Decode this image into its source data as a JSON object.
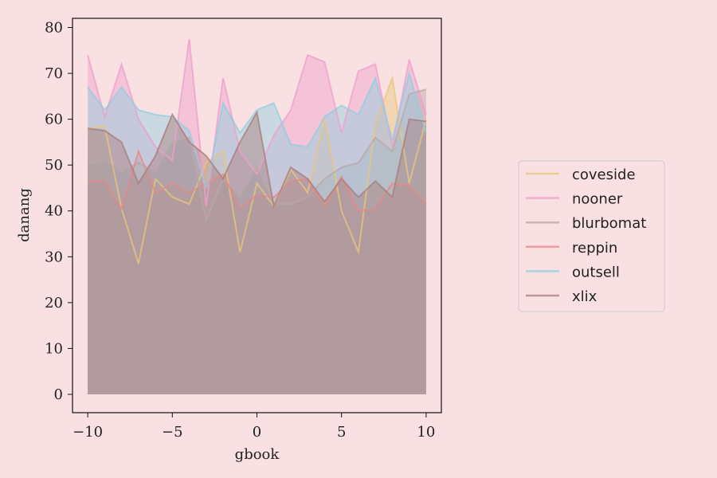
{
  "chart_data": {
    "type": "area",
    "xlabel": "gbook",
    "ylabel": "danang",
    "xlim": [
      -10.9,
      10.9
    ],
    "ylim": [
      -4,
      82
    ],
    "xticks": [
      -10,
      -5,
      0,
      5,
      10
    ],
    "xtick_labels": [
      "−10",
      "−5",
      "0",
      "5",
      "10"
    ],
    "yticks": [
      0,
      10,
      20,
      30,
      40,
      50,
      60,
      70,
      80
    ],
    "ytick_labels": [
      "0",
      "10",
      "20",
      "30",
      "40",
      "50",
      "60",
      "70",
      "80"
    ],
    "x": [
      -10,
      -9,
      -8,
      -7,
      -6,
      -5,
      -4,
      -3,
      -2,
      -1,
      0,
      1,
      2,
      3,
      4,
      5,
      6,
      7,
      8,
      9,
      10
    ],
    "legend_position": "right",
    "grid": false,
    "series": [
      {
        "name": "coveside",
        "color": "#e8c77a",
        "values": [
          58,
          58.5,
          40.5,
          28.5,
          47,
          43,
          41.5,
          50.5,
          53,
          31,
          46,
          41,
          49,
          44,
          60,
          40,
          31,
          59,
          69,
          46,
          60
        ]
      },
      {
        "name": "nooner",
        "color": "#ef9fcc",
        "values": [
          74,
          60.5,
          72,
          60,
          54,
          51,
          77.5,
          41,
          69,
          53,
          48,
          56.5,
          62,
          74,
          72.5,
          57,
          70.5,
          72,
          54,
          73,
          61
        ]
      },
      {
        "name": "blurbomat",
        "color": "#b8a7a6",
        "values": [
          50,
          51,
          48.5,
          50.5,
          48.5,
          55,
          56,
          38,
          47,
          43,
          49.5,
          41.5,
          41.5,
          43,
          47,
          49.5,
          50.5,
          56,
          53,
          65.5,
          66.5
        ]
      },
      {
        "name": "reppin",
        "color": "#e98585",
        "values": [
          46.5,
          46.5,
          40.5,
          53,
          44,
          46,
          44,
          46,
          48,
          40.5,
          43.5,
          43,
          46.5,
          47,
          41,
          47.5,
          40,
          40.5,
          46,
          45.5,
          41.5
        ]
      },
      {
        "name": "outsell",
        "color": "#8fcfe0",
        "values": [
          67,
          62,
          67,
          62,
          61,
          60.5,
          57.5,
          45,
          63.5,
          57,
          62,
          63.5,
          54.5,
          54,
          60.5,
          63,
          61,
          69,
          55.5,
          70,
          57
        ]
      },
      {
        "name": "xlix",
        "color": "#a87c7c",
        "values": [
          58,
          57.5,
          55,
          46,
          52,
          61,
          55,
          52,
          47,
          55,
          61.5,
          41,
          49.5,
          47,
          42,
          47,
          43,
          46.5,
          43,
          60,
          59.5
        ]
      }
    ]
  }
}
